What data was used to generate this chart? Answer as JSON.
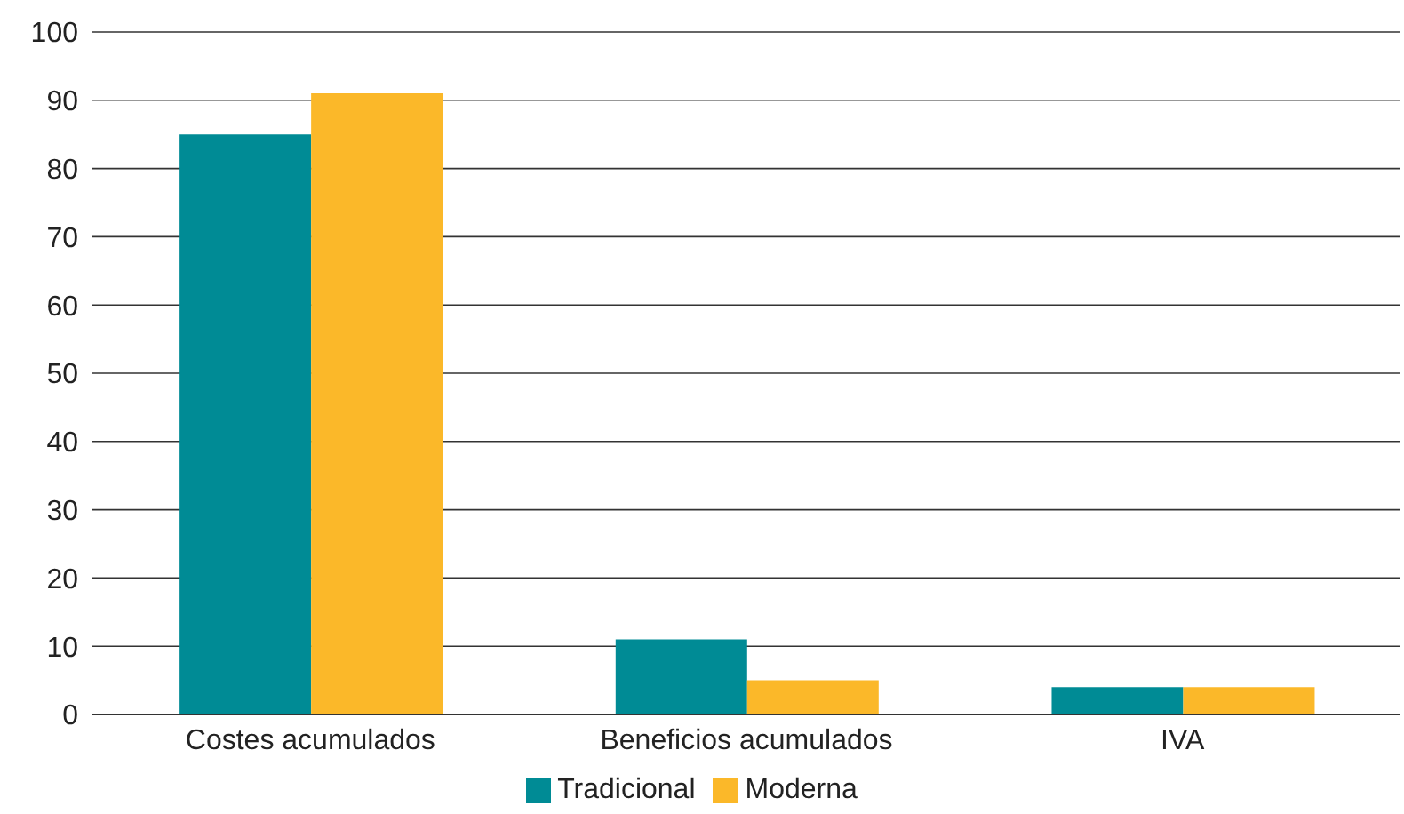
{
  "chart_data": {
    "type": "bar",
    "categories": [
      "Costes acumulados",
      "Beneficios acumulados",
      "IVA"
    ],
    "series": [
      {
        "name": "Tradicional",
        "color": "#008b95",
        "values": [
          85,
          11,
          4
        ]
      },
      {
        "name": "Moderna",
        "color": "#fbb829",
        "values": [
          91,
          5,
          4
        ]
      }
    ],
    "ylim": [
      0,
      100
    ],
    "yticks": [
      0,
      10,
      20,
      30,
      40,
      50,
      60,
      70,
      80,
      90,
      100
    ],
    "grid": "y",
    "legend": "bottom"
  }
}
